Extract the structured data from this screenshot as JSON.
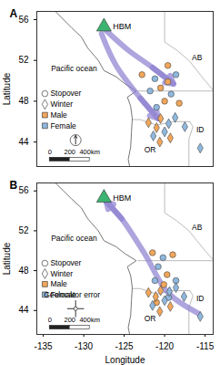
{
  "chart_data": [
    {
      "type": "scatter",
      "panel_label": "A",
      "ylabel": "Latitude",
      "xlim": [
        -135.8,
        -114
      ],
      "ylim": [
        41.6,
        56.8
      ],
      "xticks": [
        -135,
        -130,
        -125,
        -120,
        -115
      ],
      "yticks": [
        44,
        48,
        52,
        56
      ],
      "tick_labels": "y",
      "site": {
        "label": "HBM",
        "lon": -127.5,
        "lat": 55.3,
        "color": "#3cb371"
      },
      "legend_items": [
        {
          "label": "Stopover",
          "marker": "circle"
        },
        {
          "label": "Winter",
          "marker": "diamond"
        },
        {
          "label": "Male",
          "color": "#f2a65a"
        },
        {
          "label": "Female",
          "color": "#8fb8de"
        }
      ],
      "route_color": "#8b7fd0",
      "routes": [
        [
          [
            -127.2,
            54.9
          ],
          [
            -124.5,
            53.0
          ],
          [
            -121.5,
            51.3
          ],
          [
            -118.9,
            49.7
          ]
        ],
        [
          [
            -127.8,
            54.6
          ],
          [
            -126.0,
            51.5
          ],
          [
            -123.0,
            48.3
          ],
          [
            -120.8,
            46.3
          ]
        ]
      ],
      "points": [
        {
          "lon": -122.8,
          "lat": 50.6,
          "stage": "Stopover",
          "sex": "Male"
        },
        {
          "lon": -121.2,
          "lat": 50.2,
          "stage": "Stopover",
          "sex": "Female"
        },
        {
          "lon": -119.6,
          "lat": 49.9,
          "stage": "Stopover",
          "sex": "Male"
        },
        {
          "lon": -118.6,
          "lat": 50.6,
          "stage": "Stopover",
          "sex": "Female"
        },
        {
          "lon": -120.5,
          "lat": 49.3,
          "stage": "Stopover",
          "sex": "Male"
        },
        {
          "lon": -121.8,
          "lat": 49.0,
          "stage": "Stopover",
          "sex": "Female"
        },
        {
          "lon": -119.2,
          "lat": 48.7,
          "stage": "Stopover",
          "sex": "Female"
        },
        {
          "lon": -120.0,
          "lat": 48.0,
          "stage": "Stopover",
          "sex": "Male"
        },
        {
          "lon": -121.0,
          "lat": 47.4,
          "stage": "Stopover",
          "sex": "Female"
        },
        {
          "lon": -118.2,
          "lat": 47.8,
          "stage": "Stopover",
          "sex": "Male"
        },
        {
          "lon": -119.6,
          "lat": 51.5,
          "stage": "Stopover",
          "sex": "Male"
        },
        {
          "lon": -120.5,
          "lat": 46.3,
          "stage": "Winter",
          "sex": "Male"
        },
        {
          "lon": -119.5,
          "lat": 45.8,
          "stage": "Winter",
          "sex": "Female"
        },
        {
          "lon": -121.0,
          "lat": 45.4,
          "stage": "Winter",
          "sex": "Male"
        },
        {
          "lon": -120.0,
          "lat": 45.0,
          "stage": "Winter",
          "sex": "Female"
        },
        {
          "lon": -118.7,
          "lat": 46.4,
          "stage": "Winter",
          "sex": "Female"
        },
        {
          "lon": -121.4,
          "lat": 44.6,
          "stage": "Winter",
          "sex": "Female"
        },
        {
          "lon": -119.3,
          "lat": 44.4,
          "stage": "Winter",
          "sex": "Male"
        },
        {
          "lon": -120.6,
          "lat": 44.0,
          "stage": "Winter",
          "sex": "Male"
        },
        {
          "lon": -117.5,
          "lat": 45.5,
          "stage": "Winter",
          "sex": "Female"
        },
        {
          "lon": -115.6,
          "lat": 43.4,
          "stage": "Winter",
          "sex": "Female"
        },
        {
          "lon": -122.0,
          "lat": 45.9,
          "stage": "Winter",
          "sex": "Male"
        }
      ],
      "region_labels": [
        {
          "text": "Pacific ocean",
          "lon": -131.2,
          "lat": 51.2
        },
        {
          "text": "AB",
          "lon": -116.0,
          "lat": 52.3
        },
        {
          "text": "OR",
          "lon": -121.8,
          "lat": 43.2
        },
        {
          "text": "ID",
          "lon": -115.6,
          "lat": 45.2
        }
      ],
      "scale_bar": {
        "km_per_degree": 81,
        "ticks": [
          {
            "value": 0,
            "label": "0"
          },
          {
            "value": 200,
            "label": "200"
          },
          {
            "value": 400,
            "label": "400km"
          }
        ]
      }
    },
    {
      "type": "scatter",
      "panel_label": "B",
      "xlabel": "Longitude",
      "ylabel": "Latitude",
      "xlim": [
        -135.8,
        -114
      ],
      "ylim": [
        41.6,
        56.8
      ],
      "xticks": [
        -135,
        -130,
        -125,
        -120,
        -115
      ],
      "yticks": [
        44,
        48,
        52,
        56
      ],
      "site": {
        "label": "HBM",
        "lon": -127.5,
        "lat": 55.3,
        "color": "#3cb371"
      },
      "legend_items": [
        {
          "label": "Stopover",
          "marker": "circle"
        },
        {
          "label": "Winter",
          "marker": "diamond"
        },
        {
          "label": "Male",
          "color": "#f2a65a"
        },
        {
          "label": "Female",
          "color": "#8fb8de"
        }
      ],
      "route_color": "#8b7fd0",
      "routes": [
        [
          [
            -115.8,
            43.7
          ],
          [
            -119.6,
            45.8
          ],
          [
            -122.4,
            49.6
          ],
          [
            -125.3,
            53.2
          ],
          [
            -127.2,
            54.9
          ]
        ]
      ],
      "points": [
        {
          "lon": -121.5,
          "lat": 49.8,
          "stage": "Stopover",
          "sex": "Male"
        },
        {
          "lon": -120.2,
          "lat": 49.3,
          "stage": "Stopover",
          "sex": "Female"
        },
        {
          "lon": -119.0,
          "lat": 49.6,
          "stage": "Stopover",
          "sex": "Male"
        },
        {
          "lon": -120.8,
          "lat": 48.4,
          "stage": "Stopover",
          "sex": "Female"
        },
        {
          "lon": -119.7,
          "lat": 47.6,
          "stage": "Stopover",
          "sex": "Male"
        },
        {
          "lon": -121.2,
          "lat": 47.0,
          "stage": "Stopover",
          "sex": "Female"
        },
        {
          "lon": -118.6,
          "lat": 47.0,
          "stage": "Stopover",
          "sex": "Female"
        },
        {
          "lon": -120.1,
          "lat": 46.6,
          "stage": "Stopover",
          "sex": "Male"
        },
        {
          "lon": -119.5,
          "lat": 45.3,
          "stage": "Stopover",
          "sex": "Female"
        },
        {
          "lon": -121.0,
          "lat": 44.8,
          "stage": "Stopover",
          "sex": "Male"
        },
        {
          "lon": -120.5,
          "lat": 46.0,
          "stage": "Winter",
          "sex": "Male"
        },
        {
          "lon": -119.4,
          "lat": 45.9,
          "stage": "Winter",
          "sex": "Female"
        },
        {
          "lon": -121.1,
          "lat": 45.4,
          "stage": "Winter",
          "sex": "Male"
        },
        {
          "lon": -120.0,
          "lat": 45.0,
          "stage": "Winter",
          "sex": "Female"
        },
        {
          "lon": -118.6,
          "lat": 46.3,
          "stage": "Winter",
          "sex": "Female"
        },
        {
          "lon": -121.5,
          "lat": 44.5,
          "stage": "Winter",
          "sex": "Female"
        },
        {
          "lon": -119.3,
          "lat": 44.4,
          "stage": "Winter",
          "sex": "Male"
        },
        {
          "lon": -120.6,
          "lat": 43.9,
          "stage": "Winter",
          "sex": "Male"
        },
        {
          "lon": -117.6,
          "lat": 45.4,
          "stage": "Winter",
          "sex": "Female"
        },
        {
          "lon": -115.6,
          "lat": 43.4,
          "stage": "Winter",
          "sex": "Female"
        },
        {
          "lon": -122.0,
          "lat": 45.8,
          "stage": "Winter",
          "sex": "Male"
        }
      ],
      "region_labels": [
        {
          "text": "Pacific ocean",
          "lon": -131.2,
          "lat": 51.2
        },
        {
          "text": "AB",
          "lon": -116.0,
          "lat": 52.3
        },
        {
          "text": "OR",
          "lon": -121.8,
          "lat": 43.2
        },
        {
          "text": "ID",
          "lon": -115.6,
          "lat": 45.2
        }
      ],
      "geolocator_error": {
        "label": "Geolocator error"
      },
      "scale_bar": {
        "km_per_degree": 81,
        "ticks": [
          {
            "value": 0,
            "label": "0"
          },
          {
            "value": 200,
            "label": "200"
          },
          {
            "value": 400,
            "label": "400km"
          }
        ]
      }
    }
  ],
  "basemap": {
    "coastline": [
      [
        -133.5,
        56.8
      ],
      [
        -131.5,
        55.2
      ],
      [
        -130.3,
        54.3
      ],
      [
        -129.5,
        53.2
      ],
      [
        -128.2,
        52.0
      ],
      [
        -127.5,
        51.0
      ],
      [
        -126.0,
        50.4
      ],
      [
        -124.9,
        49.7
      ],
      [
        -123.5,
        49.0
      ],
      [
        -124.6,
        48.4
      ],
      [
        -124.2,
        47.5
      ],
      [
        -124.0,
        46.3
      ],
      [
        -124.1,
        45.0
      ],
      [
        -124.2,
        43.5
      ],
      [
        -124.5,
        42.3
      ],
      [
        -124.3,
        41.5
      ]
    ],
    "borders": [
      [
        [
          -120,
          56.8
        ],
        [
          -120,
          53.8
        ],
        [
          -118.5,
          53
        ],
        [
          -117,
          52
        ],
        [
          -116,
          51
        ],
        [
          -115,
          50
        ],
        [
          -114,
          49.1
        ]
      ],
      [
        [
          -123.3,
          49
        ],
        [
          -114,
          49
        ]
      ],
      [
        [
          -124,
          46.2
        ],
        [
          -123,
          46.2
        ],
        [
          -121,
          45.65
        ],
        [
          -119,
          46.0
        ],
        [
          -116.9,
          46.0
        ]
      ],
      [
        [
          -116.9,
          46.0
        ],
        [
          -116.5,
          45.5
        ],
        [
          -117,
          44.3
        ],
        [
          -117,
          41.5
        ]
      ]
    ]
  }
}
